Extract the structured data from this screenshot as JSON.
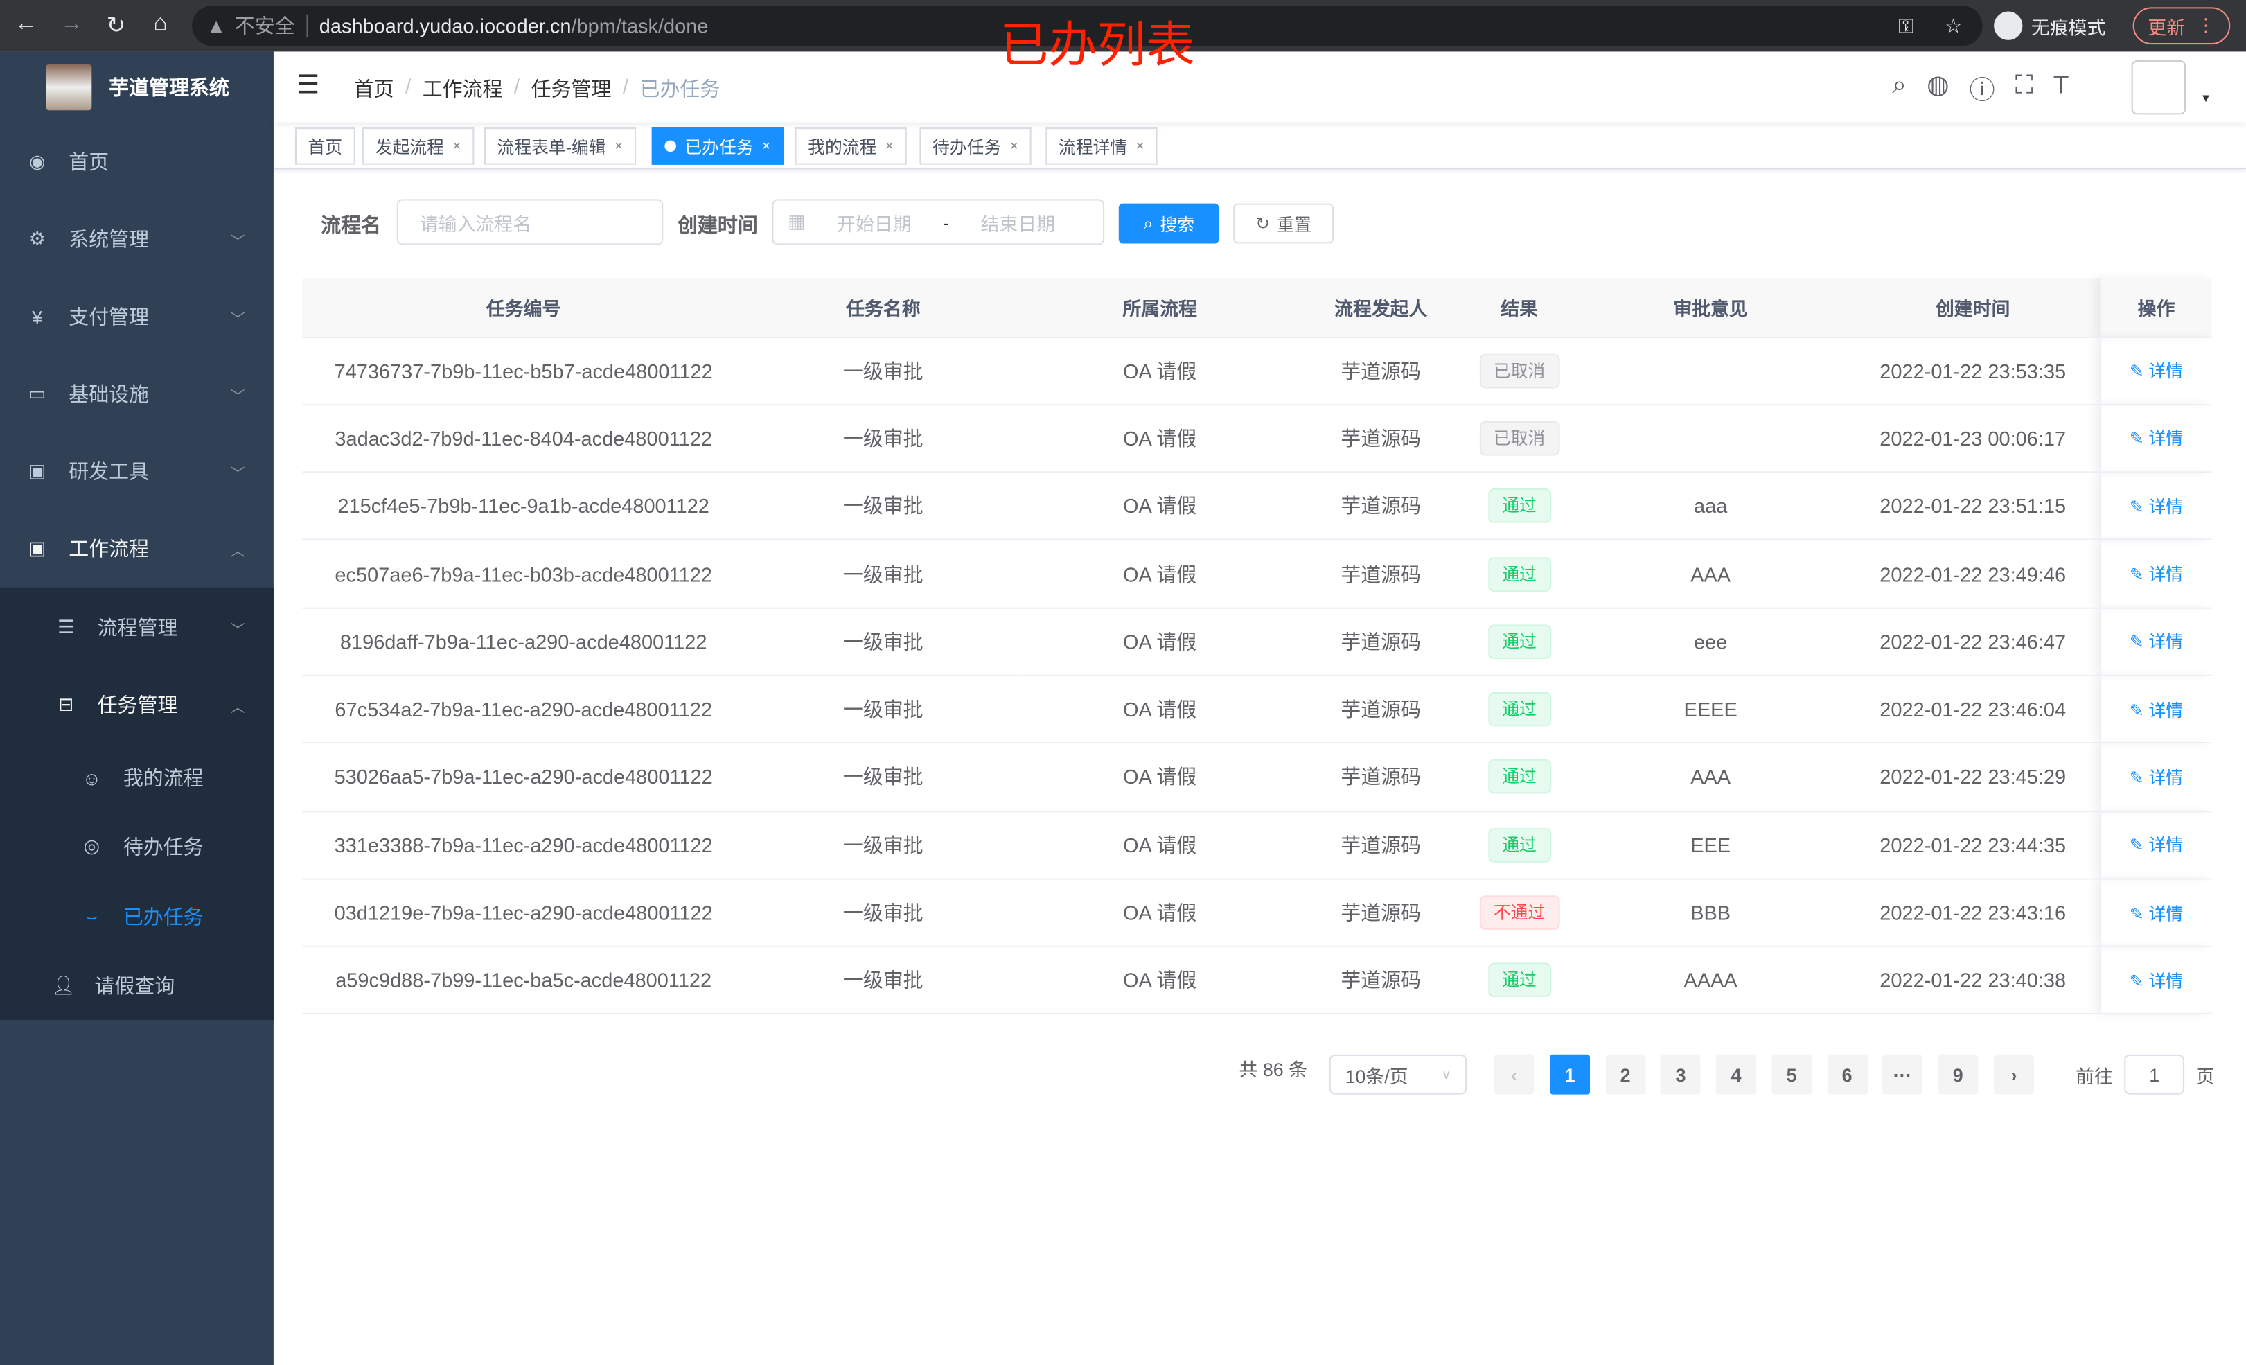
{
  "browser": {
    "insecure": "不安全",
    "url_host": "dashboard.yudao.iocoder.cn",
    "url_path": "/bpm/task/done",
    "incognito": "无痕模式",
    "update": "更新"
  },
  "overlay_title": "已办列表",
  "app": {
    "title": "芋道管理系统"
  },
  "sidebar": {
    "items": [
      {
        "label": "首页",
        "icon": "dashboard-icon"
      },
      {
        "label": "系统管理",
        "icon": "gear-icon"
      },
      {
        "label": "支付管理",
        "icon": "yen-icon"
      },
      {
        "label": "基础设施",
        "icon": "monitor-icon"
      },
      {
        "label": "研发工具",
        "icon": "toolbox-icon"
      },
      {
        "label": "工作流程",
        "icon": "toolbox-icon"
      }
    ],
    "sub": [
      {
        "label": "流程管理"
      },
      {
        "label": "任务管理"
      }
    ],
    "task_sub": [
      {
        "label": "我的流程"
      },
      {
        "label": "待办任务"
      },
      {
        "label": "已办任务"
      }
    ],
    "leave": "请假查询"
  },
  "breadcrumb": [
    "首页",
    "工作流程",
    "任务管理",
    "已办任务"
  ],
  "tags": [
    {
      "label": "首页"
    },
    {
      "label": "发起流程"
    },
    {
      "label": "流程表单-编辑"
    },
    {
      "label": "已办任务",
      "active": true
    },
    {
      "label": "我的流程"
    },
    {
      "label": "待办任务"
    },
    {
      "label": "流程详情"
    }
  ],
  "search": {
    "name_label": "流程名",
    "name_placeholder": "请输入流程名",
    "time_label": "创建时间",
    "start_placeholder": "开始日期",
    "dash": "-",
    "end_placeholder": "结束日期",
    "search_btn": "搜索",
    "reset_btn": "重置"
  },
  "table": {
    "columns": [
      "任务编号",
      "任务名称",
      "所属流程",
      "流程发起人",
      "结果",
      "审批意见",
      "创建时间",
      "操作"
    ],
    "rows": [
      [
        "74736737-7b9b-11ec-b5b7-acde48001122",
        "一级审批",
        "OA 请假",
        "芋道源码",
        "已取消",
        "",
        "2022-01-22 23:53:35",
        "详情"
      ],
      [
        "3adac3d2-7b9d-11ec-8404-acde48001122",
        "一级审批",
        "OA 请假",
        "芋道源码",
        "已取消",
        "",
        "2022-01-23 00:06:17",
        "详情"
      ],
      [
        "215cf4e5-7b9b-11ec-9a1b-acde48001122",
        "一级审批",
        "OA 请假",
        "芋道源码",
        "通过",
        "aaa",
        "2022-01-22 23:51:15",
        "详情"
      ],
      [
        "ec507ae6-7b9a-11ec-b03b-acde48001122",
        "一级审批",
        "OA 请假",
        "芋道源码",
        "通过",
        "AAA",
        "2022-01-22 23:49:46",
        "详情"
      ],
      [
        "8196daff-7b9a-11ec-a290-acde48001122",
        "一级审批",
        "OA 请假",
        "芋道源码",
        "通过",
        "eee",
        "2022-01-22 23:46:47",
        "详情"
      ],
      [
        "67c534a2-7b9a-11ec-a290-acde48001122",
        "一级审批",
        "OA 请假",
        "芋道源码",
        "通过",
        "EEEE",
        "2022-01-22 23:46:04",
        "详情"
      ],
      [
        "53026aa5-7b9a-11ec-a290-acde48001122",
        "一级审批",
        "OA 请假",
        "芋道源码",
        "通过",
        "AAA",
        "2022-01-22 23:45:29",
        "详情"
      ],
      [
        "331e3388-7b9a-11ec-a290-acde48001122",
        "一级审批",
        "OA 请假",
        "芋道源码",
        "通过",
        "EEE",
        "2022-01-22 23:44:35",
        "详情"
      ],
      [
        "03d1219e-7b9a-11ec-a290-acde48001122",
        "一级审批",
        "OA 请假",
        "芋道源码",
        "不通过",
        "BBB",
        "2022-01-22 23:43:16",
        "详情"
      ],
      [
        "a59c9d88-7b99-11ec-ba5c-acde48001122",
        "一级审批",
        "OA 请假",
        "芋道源码",
        "通过",
        "AAAA",
        "2022-01-22 23:40:38",
        "详情"
      ]
    ]
  },
  "result_colors": {
    "已取消": "#909399",
    "通过": "#13ce66",
    "不通过": "#ff4949"
  },
  "pagination": {
    "total": "共 86 条",
    "page_size": "10条/页",
    "pages": [
      "1",
      "2",
      "3",
      "4",
      "5",
      "6",
      "···",
      "9"
    ],
    "current": "1",
    "goto_label": "前往",
    "goto_value": "1",
    "page_suffix": "页"
  },
  "accent": "#1890ff"
}
